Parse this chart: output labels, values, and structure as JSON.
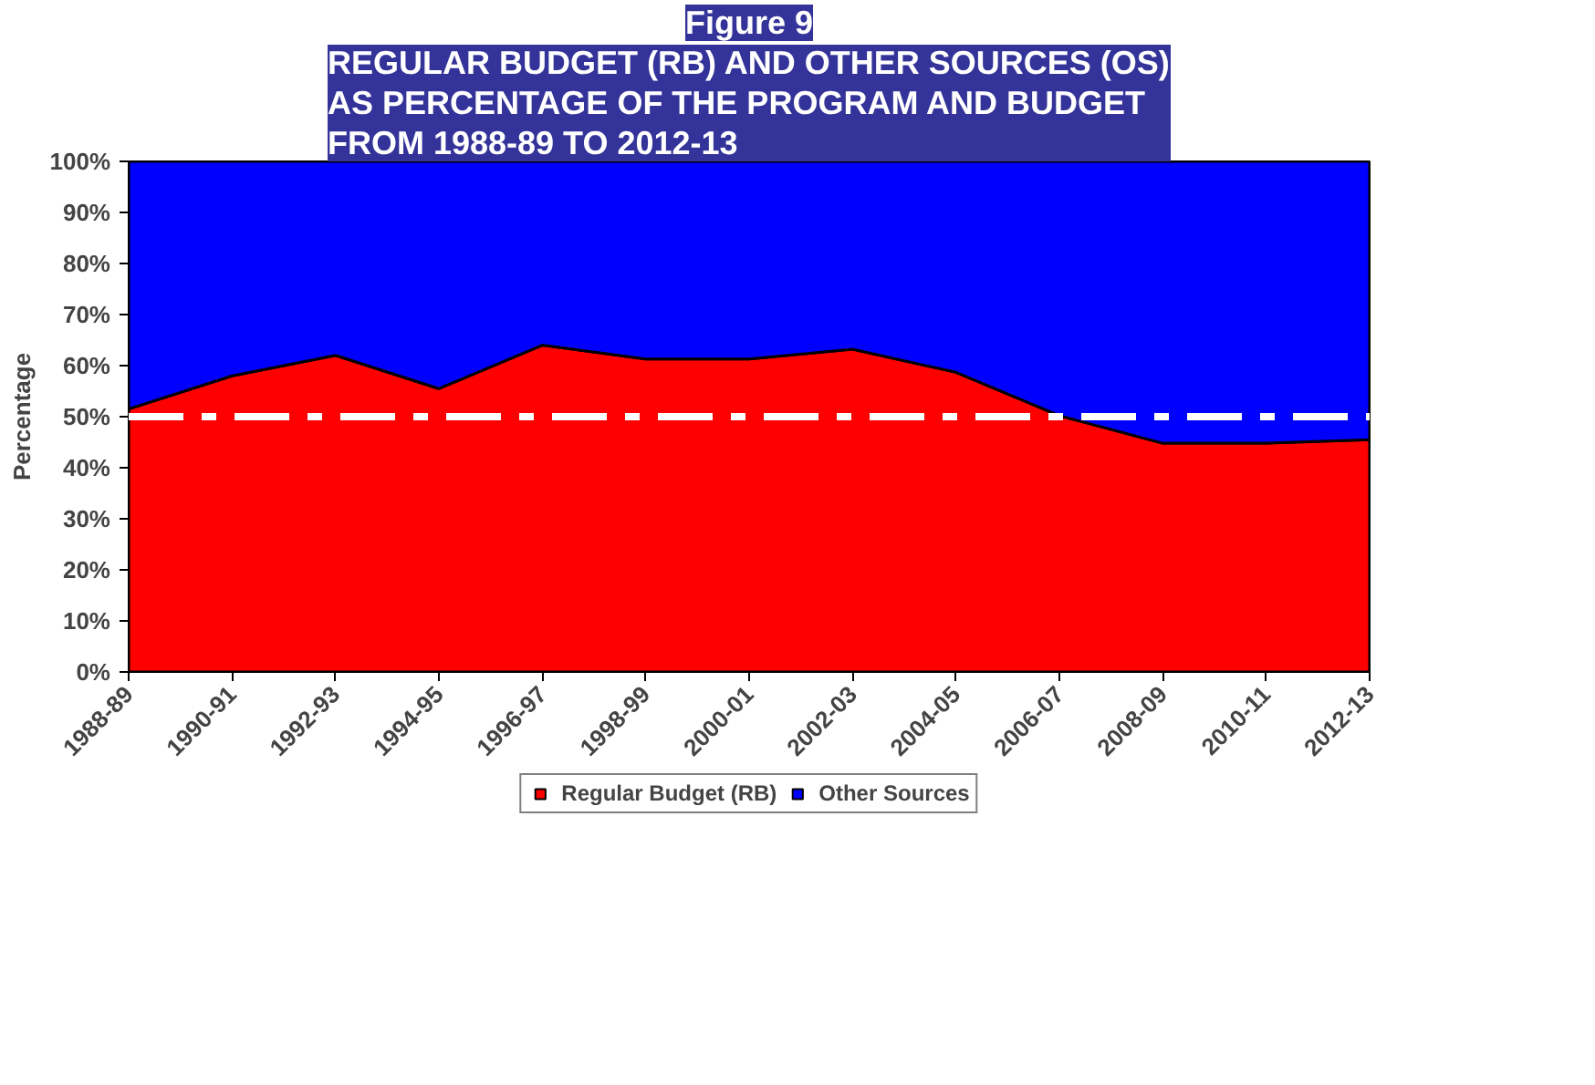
{
  "chart_data": {
    "type": "area",
    "title": "Figure 9",
    "subtitle": "REGULAR BUDGET (RB) AND OTHER SOURCES (OS)\nAS PERCENTAGE OF THE PROGRAM AND BUDGET\nFROM 1988-89 TO 2012-13",
    "ylabel": "Percentage",
    "categories": [
      "1988-89",
      "1990-91",
      "1992-93",
      "1994-95",
      "1996-97",
      "1998-99",
      "2000-01",
      "2002-03",
      "2004-05",
      "2006-07",
      "2008-09",
      "2010-11",
      "2012-13"
    ],
    "stacked": true,
    "series": [
      {
        "name": "Regular Budget (RB)",
        "color": "#ff0000",
        "values": [
          51.5,
          58,
          62,
          55.5,
          64,
          61.3,
          61.3,
          63.2,
          58.7,
          50.2,
          44.8,
          44.8,
          45.5
        ]
      },
      {
        "name": "Other Sources",
        "color": "#0000ff",
        "values": [
          48.5,
          42,
          38,
          44.5,
          36,
          38.7,
          38.7,
          36.8,
          41.3,
          49.8,
          55.2,
          55.2,
          54.5
        ]
      }
    ],
    "ylim": [
      0,
      100
    ],
    "yticks": [
      {
        "value": 0,
        "label": "0%"
      },
      {
        "value": 10,
        "label": "10%"
      },
      {
        "value": 20,
        "label": "20%"
      },
      {
        "value": 30,
        "label": "30%"
      },
      {
        "value": 40,
        "label": "40%"
      },
      {
        "value": 50,
        "label": "50%"
      },
      {
        "value": 60,
        "label": "60%"
      },
      {
        "value": 70,
        "label": "70%"
      },
      {
        "value": 80,
        "label": "80%"
      },
      {
        "value": 90,
        "label": "90%"
      },
      {
        "value": 100,
        "label": "100%"
      }
    ],
    "ref_lines": [
      {
        "axis": "y",
        "value": 50,
        "color": "#ffffff",
        "line_style": "dashdot"
      }
    ],
    "grid": false,
    "legend": "bottom"
  }
}
